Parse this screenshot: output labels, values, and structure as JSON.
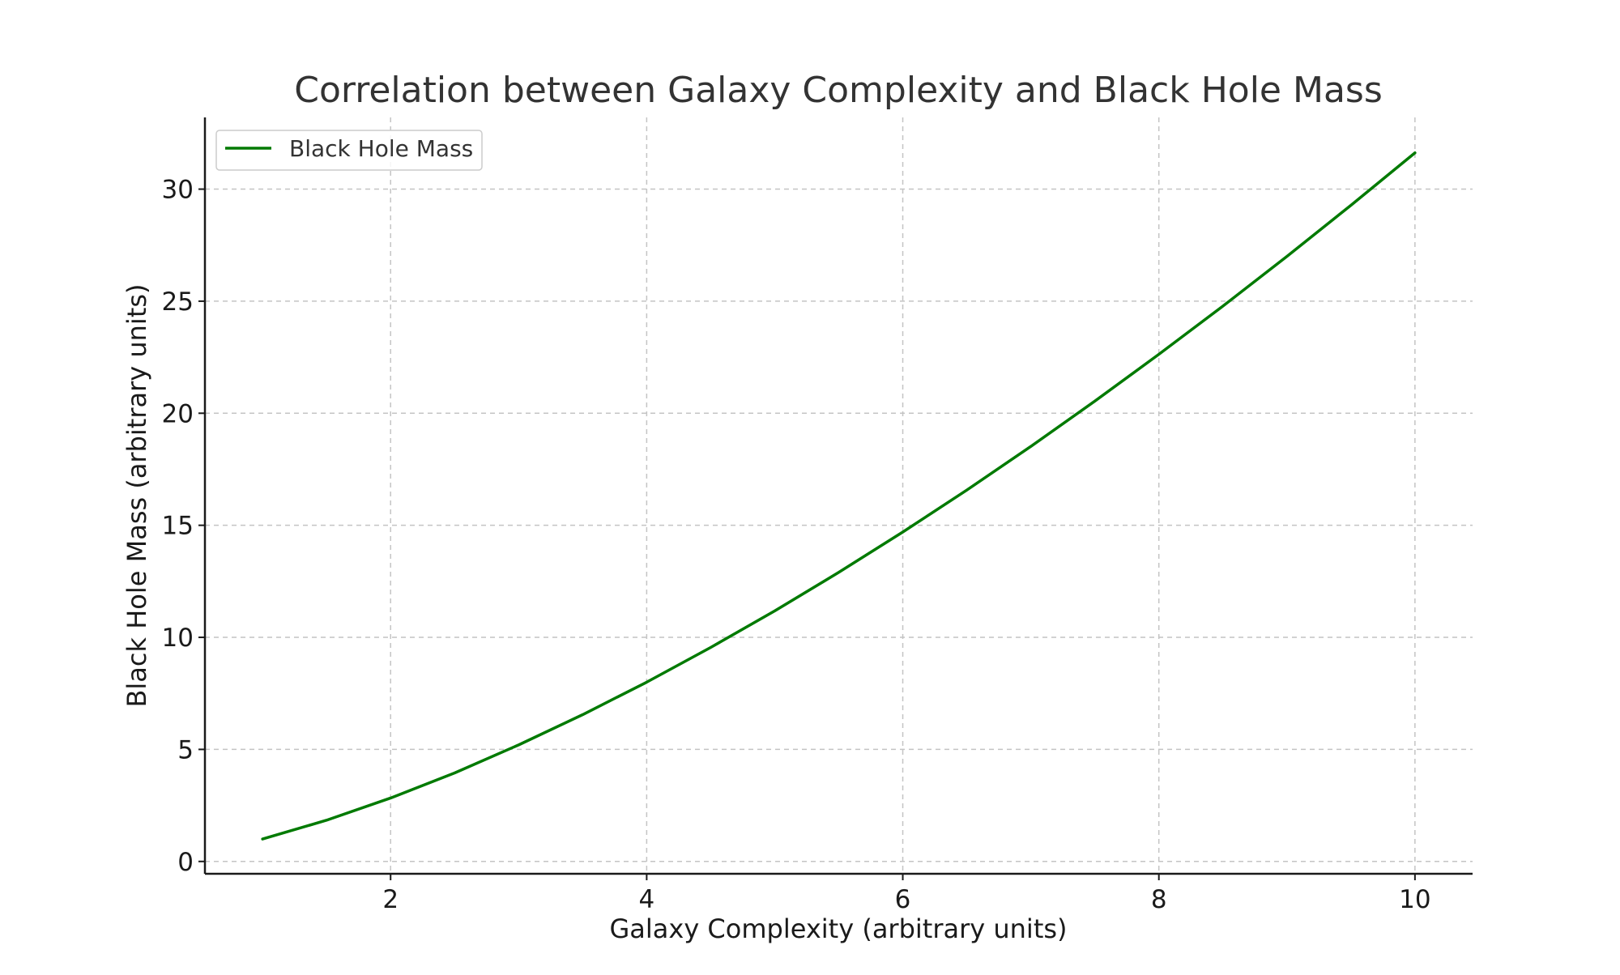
{
  "chart_data": {
    "type": "line",
    "title": "Correlation between Galaxy Complexity and Black Hole Mass",
    "xlabel": "Galaxy Complexity (arbitrary units)",
    "ylabel": "Black Hole Mass (arbitrary units)",
    "xlim": [
      0.55,
      10.45
    ],
    "ylim": [
      -0.55,
      33.2
    ],
    "xticks": [
      2,
      4,
      6,
      8,
      10
    ],
    "yticks": [
      0,
      5,
      10,
      15,
      20,
      25,
      30
    ],
    "grid": true,
    "legend_position": "top-left",
    "series": [
      {
        "name": "Black Hole Mass",
        "color": "#007a00",
        "x": [
          1,
          1.5,
          2,
          2.5,
          3,
          3.5,
          4,
          4.5,
          5,
          5.5,
          6,
          6.5,
          7,
          7.5,
          8,
          8.5,
          9,
          9.5,
          10
        ],
        "y": [
          1.0,
          1.84,
          2.83,
          3.95,
          5.2,
          6.55,
          8.0,
          9.55,
          11.18,
          12.9,
          14.7,
          16.57,
          18.52,
          20.54,
          22.63,
          24.78,
          27.0,
          29.28,
          31.62
        ]
      }
    ]
  }
}
